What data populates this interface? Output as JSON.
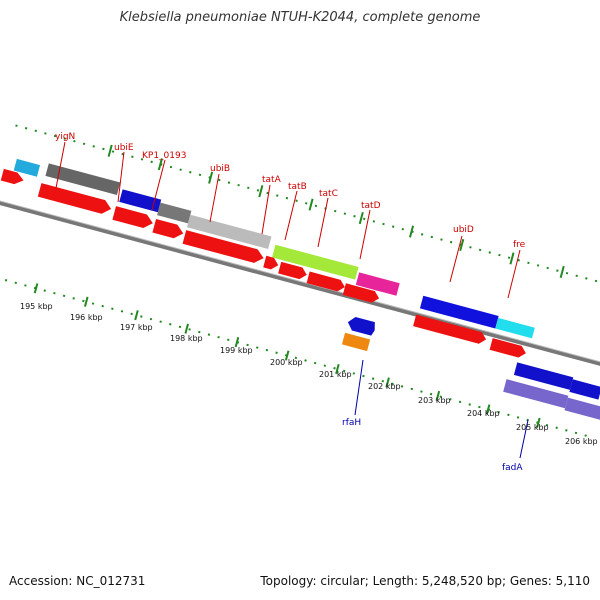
{
  "title": "Klebsiella pneumoniae NTUH-K2044, complete genome",
  "footer": {
    "accession": "Accession: NC_012731",
    "topology": "Topology: circular; Length: 5,248,520 bp; Genes: 5,110"
  },
  "chart_data": {
    "type": "genome-map",
    "ticks": [
      "195 kbp",
      "196 kbp",
      "197 kbp",
      "198 kbp",
      "199 kbp",
      "200 kbp",
      "201 kbp",
      "202 kbp",
      "203 kbp",
      "204 kbp",
      "205 kbp",
      "206 kbp"
    ],
    "gene_labels": [
      {
        "name": "yigN",
        "color": "#cc0000"
      },
      {
        "name": "ubiE",
        "color": "#cc0000"
      },
      {
        "name": "KP1_0193",
        "color": "#cc0000"
      },
      {
        "name": "ubiB",
        "color": "#cc0000"
      },
      {
        "name": "tatA",
        "color": "#cc0000"
      },
      {
        "name": "tatB",
        "color": "#cc0000"
      },
      {
        "name": "tatC",
        "color": "#cc0000"
      },
      {
        "name": "tatD",
        "color": "#cc0000"
      },
      {
        "name": "ubiD",
        "color": "#cc0000"
      },
      {
        "name": "fre",
        "color": "#cc0000"
      },
      {
        "name": "rfaH",
        "color": "#0000aa"
      },
      {
        "name": "fadA",
        "color": "#0000aa"
      }
    ]
  }
}
